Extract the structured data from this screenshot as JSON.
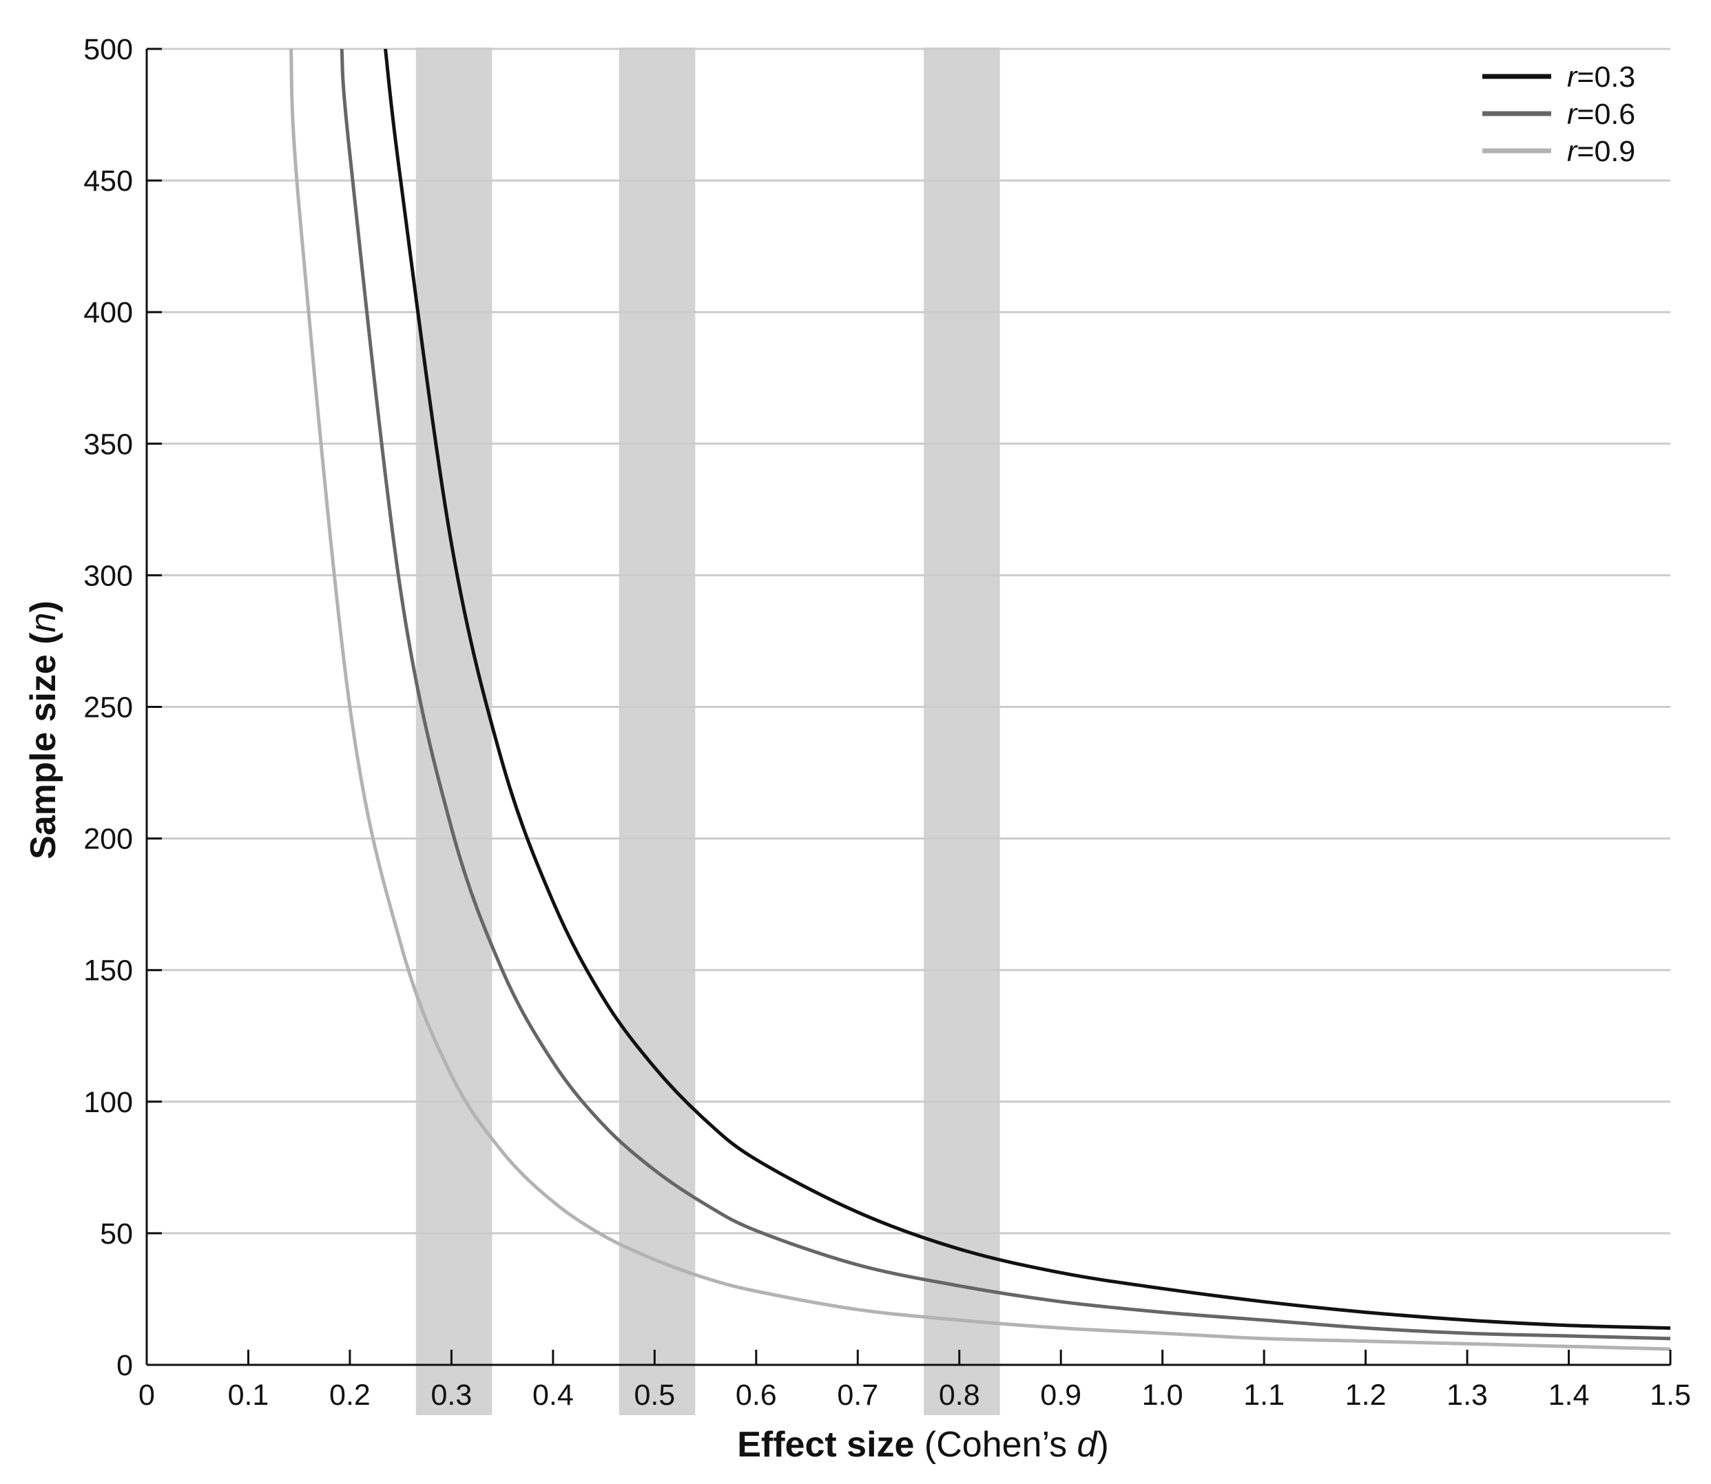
{
  "chart_data": {
    "type": "line",
    "xlabel_bold": "Effect size",
    "xlabel_rest": " (Cohen’s ",
    "xlabel_italic": "d",
    "xlabel_close": ")",
    "ylabel_bold": "Sample size (",
    "ylabel_italic": "n",
    "ylabel_close": ")",
    "xlim": [
      0,
      1.5
    ],
    "ylim": [
      0,
      500
    ],
    "x_ticks": [
      "0",
      "0.1",
      "0.2",
      "0.3",
      "0.4",
      "0.5",
      "0.6",
      "0.7",
      "0.8",
      "0.9",
      "1.0",
      "1.1",
      "1.2",
      "1.3",
      "1.4",
      "1.5"
    ],
    "y_ticks": [
      "0",
      "50",
      "100",
      "150",
      "200",
      "250",
      "300",
      "350",
      "400",
      "450",
      "500"
    ],
    "grid": "horizontal",
    "legend_position": "top-right",
    "shaded_bands": [
      {
        "x_from": 0.265,
        "x_to": 0.34
      },
      {
        "x_from": 0.465,
        "x_to": 0.54
      },
      {
        "x_from": 0.765,
        "x_to": 0.84
      }
    ],
    "band_color": "#d3d3d3",
    "series": [
      {
        "name_prefix": "r",
        "name_suffix": "=0.3",
        "color": "#111111",
        "x": [
          0.235,
          0.25,
          0.3,
          0.35,
          0.4,
          0.45,
          0.5,
          0.55,
          0.6,
          0.7,
          0.8,
          0.9,
          1.0,
          1.1,
          1.2,
          1.3,
          1.4,
          1.5
        ],
        "y": [
          500,
          450,
          312,
          229,
          176,
          139,
          113,
          93,
          78,
          58,
          44,
          35,
          29,
          24,
          20,
          17,
          15,
          14
        ]
      },
      {
        "name_prefix": "r",
        "name_suffix": "=0.6",
        "color": "#666666",
        "x": [
          0.192,
          0.2,
          0.25,
          0.3,
          0.35,
          0.4,
          0.45,
          0.5,
          0.55,
          0.6,
          0.7,
          0.8,
          0.9,
          1.0,
          1.1,
          1.2,
          1.3,
          1.4,
          1.5
        ],
        "y": [
          500,
          460,
          294,
          204,
          150,
          115,
          91,
          74,
          61,
          51,
          38,
          30,
          24,
          20,
          17,
          14,
          12,
          11,
          10
        ]
      },
      {
        "name_prefix": "r",
        "name_suffix": "=0.9",
        "color": "#b3b3b3",
        "x": [
          0.142,
          0.15,
          0.2,
          0.25,
          0.3,
          0.35,
          0.4,
          0.45,
          0.5,
          0.55,
          0.6,
          0.7,
          0.8,
          0.9,
          1.0,
          1.1,
          1.2,
          1.3,
          1.4,
          1.5
        ],
        "y": [
          500,
          440,
          250,
          160,
          110,
          81,
          62,
          49,
          40,
          33,
          28,
          21,
          17,
          14,
          12,
          10,
          9,
          8,
          7,
          6
        ]
      }
    ]
  }
}
